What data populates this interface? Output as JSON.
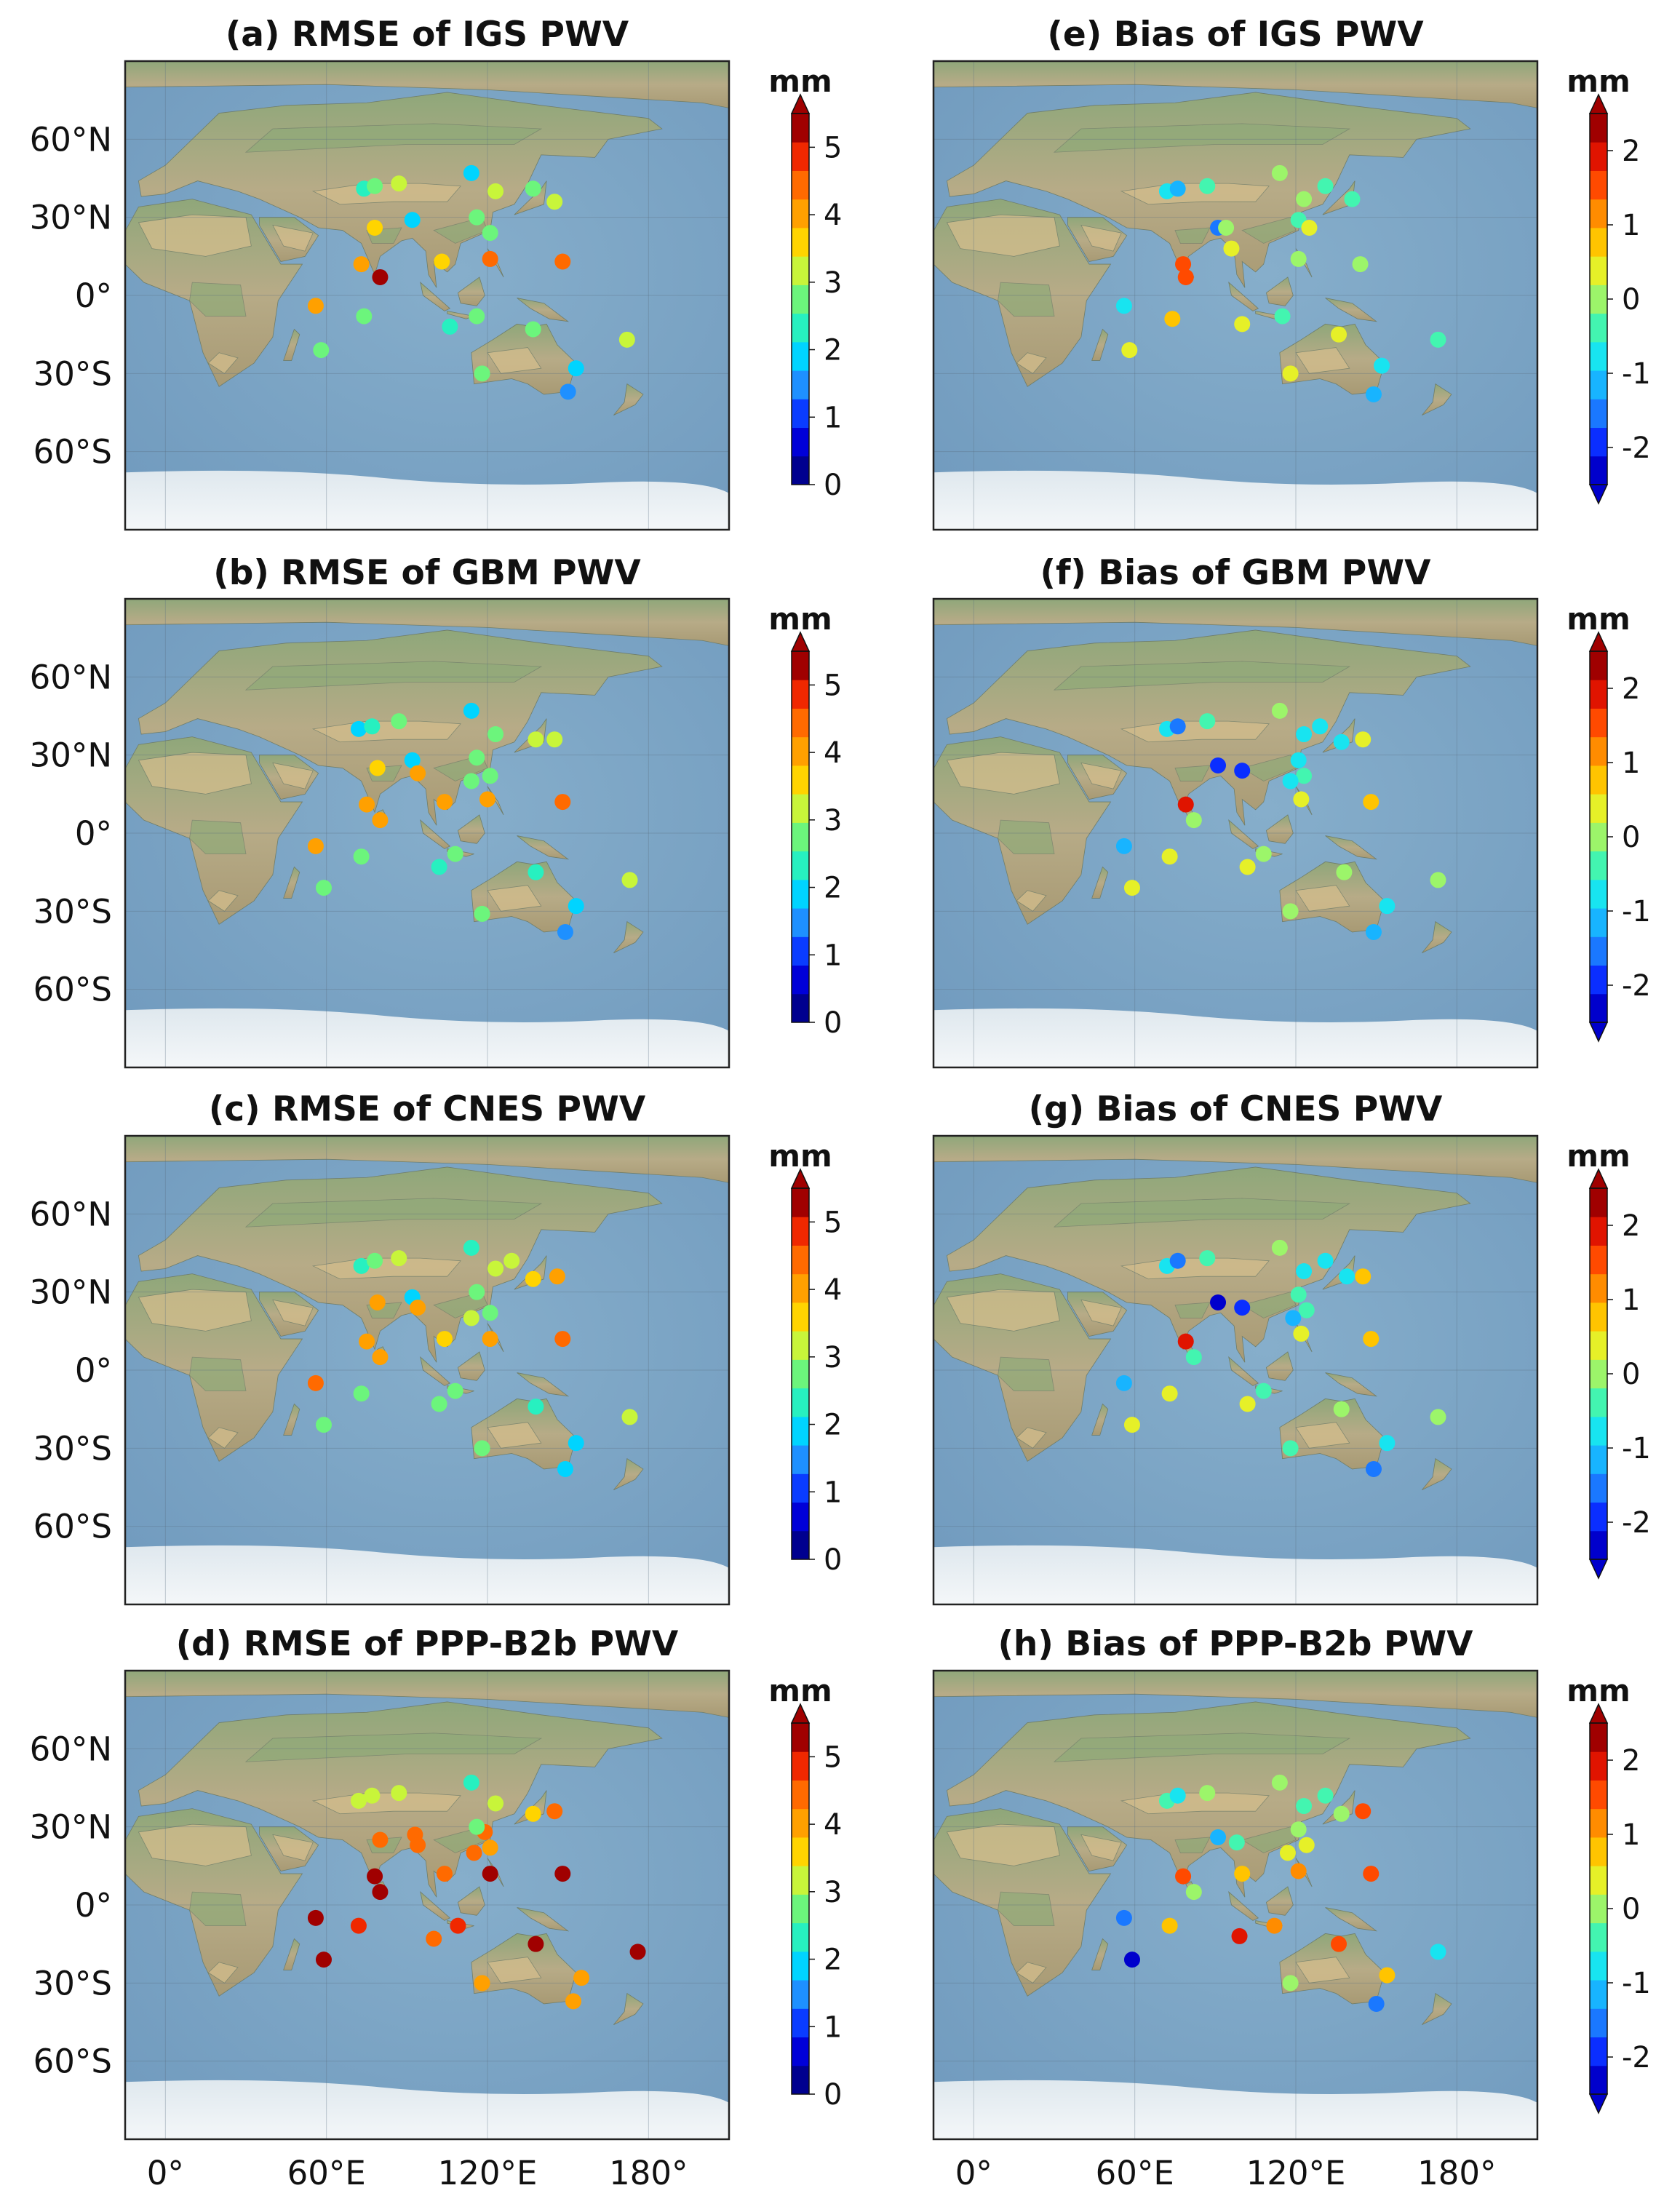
{
  "figure": {
    "colors": {
      "ocean": "#7fa9c9",
      "ocean_deep": "#6d97bb",
      "land_low": "#b9ad88",
      "land_green": "#8faa78",
      "desert": "#d3bd8c",
      "ice": "#eef2f5",
      "frame": "#222222"
    },
    "lat_labels": [
      {
        "text": "60°N",
        "lat": 60
      },
      {
        "text": "30°N",
        "lat": 30
      },
      {
        "text": "0°",
        "lat": 0
      },
      {
        "text": "30°S",
        "lat": -30
      },
      {
        "text": "60°S",
        "lat": -60
      }
    ],
    "lon_labels": [
      {
        "text": "0°",
        "lon": 0
      },
      {
        "text": "60°E",
        "lon": 60
      },
      {
        "text": "120°E",
        "lon": 120
      },
      {
        "text": "180°",
        "lon": 180
      }
    ]
  },
  "colorbars": {
    "rmse": {
      "unit": "mm",
      "ticks": [
        "0",
        "1",
        "2",
        "3",
        "4",
        "5"
      ],
      "tick_values": [
        0,
        1,
        2,
        3,
        4,
        5
      ],
      "range": [
        0,
        5.5
      ],
      "extend": "max",
      "colors": [
        "#00008f",
        "#0000d8",
        "#0a3cff",
        "#1e90ff",
        "#00d4ff",
        "#27f0c0",
        "#6cf57c",
        "#c8f53a",
        "#ffd400",
        "#ffa000",
        "#ff6a00",
        "#f02800",
        "#a00000"
      ]
    },
    "bias": {
      "unit": "mm",
      "ticks": [
        "-2",
        "-1",
        "0",
        "1",
        "2"
      ],
      "tick_values": [
        -2,
        -1,
        0,
        1,
        2
      ],
      "range": [
        -2.5,
        2.5
      ],
      "extend": "both",
      "colors": [
        "#0000cc",
        "#0a2eff",
        "#1a78ff",
        "#18b4ff",
        "#18e4f0",
        "#43f5b0",
        "#9cf56a",
        "#e6f028",
        "#ffc400",
        "#ff8c00",
        "#ff4a00",
        "#e01400",
        "#a00000"
      ]
    }
  },
  "chart_data": [
    {
      "type": "scatter",
      "map": "station map",
      "title": "(a) RMSE of IGS PWV",
      "colorbar": "rmse",
      "x_unit": "longitude (°E)",
      "y_unit": "latitude (°)",
      "points": [
        [
          74,
          41,
          2.3
        ],
        [
          78,
          42,
          2.7
        ],
        [
          87,
          43,
          3.2
        ],
        [
          114,
          47,
          2.0
        ],
        [
          123,
          40,
          3.3
        ],
        [
          137,
          41,
          2.8
        ],
        [
          92,
          29,
          2.1
        ],
        [
          78,
          26,
          3.7
        ],
        [
          116,
          30,
          2.6
        ],
        [
          145,
          36,
          3.3
        ],
        [
          121,
          24,
          2.6
        ],
        [
          73,
          12,
          3.9
        ],
        [
          80,
          7,
          5.4
        ],
        [
          103,
          13,
          3.8
        ],
        [
          121,
          14,
          4.3
        ],
        [
          148,
          13,
          4.4
        ],
        [
          56,
          -4,
          4.0
        ],
        [
          74,
          -8,
          2.9
        ],
        [
          106,
          -12,
          2.4
        ],
        [
          116,
          -8,
          2.8
        ],
        [
          137,
          -13,
          2.6
        ],
        [
          172,
          -17,
          3.1
        ],
        [
          58,
          -21,
          2.8
        ],
        [
          118,
          -30,
          2.9
        ],
        [
          153,
          -28,
          1.8
        ],
        [
          150,
          -37,
          1.6
        ]
      ]
    },
    {
      "type": "scatter",
      "map": "station map",
      "title": "(b) RMSE of GBM PWV",
      "colorbar": "rmse",
      "x_unit": "longitude (°E)",
      "y_unit": "latitude (°)",
      "points": [
        [
          72,
          40,
          2.1
        ],
        [
          77,
          41,
          2.3
        ],
        [
          87,
          43,
          2.6
        ],
        [
          114,
          47,
          2.1
        ],
        [
          123,
          38,
          2.9
        ],
        [
          138,
          36,
          3.1
        ],
        [
          145,
          36,
          3.1
        ],
        [
          92,
          28,
          1.9
        ],
        [
          79,
          25,
          3.8
        ],
        [
          94,
          23,
          4.1
        ],
        [
          116,
          29,
          2.6
        ],
        [
          121,
          22,
          2.7
        ],
        [
          114,
          20,
          2.8
        ],
        [
          104,
          12,
          3.9
        ],
        [
          120,
          13,
          4.1
        ],
        [
          75,
          11,
          4.2
        ],
        [
          80,
          5,
          4.1
        ],
        [
          148,
          12,
          4.3
        ],
        [
          56,
          -5,
          4.0
        ],
        [
          73,
          -9,
          2.9
        ],
        [
          108,
          -8,
          2.8
        ],
        [
          102,
          -13,
          2.5
        ],
        [
          138,
          -15,
          2.5
        ],
        [
          173,
          -18,
          3.1
        ],
        [
          59,
          -21,
          2.8
        ],
        [
          118,
          -31,
          2.9
        ],
        [
          153,
          -28,
          2.0
        ],
        [
          149,
          -38,
          1.6
        ]
      ]
    },
    {
      "type": "scatter",
      "map": "station map",
      "title": "(c) RMSE of CNES PWV",
      "colorbar": "rmse",
      "x_unit": "longitude (°E)",
      "y_unit": "latitude (°)",
      "points": [
        [
          73,
          40,
          2.3
        ],
        [
          78,
          42,
          2.7
        ],
        [
          87,
          43,
          3.1
        ],
        [
          114,
          47,
          2.2
        ],
        [
          123,
          39,
          3.2
        ],
        [
          129,
          42,
          3.3
        ],
        [
          137,
          35,
          3.5
        ],
        [
          146,
          36,
          4.1
        ],
        [
          92,
          28,
          2.0
        ],
        [
          79,
          26,
          4.0
        ],
        [
          94,
          24,
          4.2
        ],
        [
          116,
          30,
          2.8
        ],
        [
          121,
          22,
          2.7
        ],
        [
          114,
          20,
          3.0
        ],
        [
          104,
          12,
          3.8
        ],
        [
          121,
          12,
          4.2
        ],
        [
          75,
          11,
          4.0
        ],
        [
          80,
          5,
          4.1
        ],
        [
          148,
          12,
          4.5
        ],
        [
          56,
          -5,
          4.3
        ],
        [
          73,
          -9,
          2.9
        ],
        [
          108,
          -8,
          2.9
        ],
        [
          102,
          -13,
          2.6
        ],
        [
          138,
          -14,
          2.5
        ],
        [
          173,
          -18,
          3.1
        ],
        [
          59,
          -21,
          2.8
        ],
        [
          118,
          -30,
          2.8
        ],
        [
          153,
          -28,
          2.0
        ],
        [
          149,
          -38,
          1.7
        ]
      ]
    },
    {
      "type": "scatter",
      "map": "station map",
      "title": "(d) RMSE of PPP-B2b PWV",
      "colorbar": "rmse",
      "x_unit": "longitude (°E)",
      "y_unit": "latitude (°)",
      "points": [
        [
          72,
          40,
          3.0
        ],
        [
          77,
          42,
          3.0
        ],
        [
          87,
          43,
          3.2
        ],
        [
          114,
          47,
          2.2
        ],
        [
          123,
          39,
          3.3
        ],
        [
          137,
          35,
          3.6
        ],
        [
          145,
          36,
          4.6
        ],
        [
          80,
          25,
          4.6
        ],
        [
          93,
          27,
          4.5
        ],
        [
          94,
          23,
          4.3
        ],
        [
          119,
          28,
          4.6
        ],
        [
          116,
          30,
          2.6
        ],
        [
          121,
          22,
          4.0
        ],
        [
          115,
          20,
          4.4
        ],
        [
          104,
          12,
          4.6
        ],
        [
          121,
          12,
          5.2
        ],
        [
          148,
          12,
          5.8
        ],
        [
          78,
          11,
          5.8
        ],
        [
          80,
          5,
          5.8
        ],
        [
          56,
          -5,
          5.3
        ],
        [
          72,
          -8,
          4.7
        ],
        [
          109,
          -8,
          4.7
        ],
        [
          100,
          -13,
          4.6
        ],
        [
          138,
          -15,
          5.3
        ],
        [
          176,
          -18,
          5.8
        ],
        [
          59,
          -21,
          5.3
        ],
        [
          118,
          -30,
          4.0
        ],
        [
          155,
          -28,
          4.2
        ],
        [
          152,
          -37,
          4.1
        ]
      ]
    },
    {
      "type": "scatter",
      "map": "station map",
      "title": "(e) Bias of IGS PWV",
      "colorbar": "bias",
      "x_unit": "longitude (°E)",
      "y_unit": "latitude (°)",
      "points": [
        [
          72,
          40,
          -0.8
        ],
        [
          76,
          41,
          -1.0
        ],
        [
          87,
          42,
          -0.3
        ],
        [
          114,
          47,
          0.0
        ],
        [
          123,
          37,
          -0.1
        ],
        [
          131,
          42,
          -0.5
        ],
        [
          141,
          37,
          -0.2
        ],
        [
          91,
          26,
          -1.7
        ],
        [
          78,
          12,
          1.6
        ],
        [
          79,
          7,
          1.7
        ],
        [
          94,
          26,
          0.1
        ],
        [
          121,
          29,
          -0.2
        ],
        [
          125,
          26,
          0.5
        ],
        [
          96,
          18,
          0.3
        ],
        [
          121,
          14,
          0.0
        ],
        [
          144,
          12,
          0.1
        ],
        [
          56,
          -4,
          -0.9
        ],
        [
          74,
          -9,
          0.7
        ],
        [
          100,
          -11,
          0.2
        ],
        [
          115,
          -8,
          -0.4
        ],
        [
          136,
          -15,
          0.2
        ],
        [
          173,
          -17,
          -0.2
        ],
        [
          58,
          -21,
          0.2
        ],
        [
          118,
          -30,
          0.2
        ],
        [
          152,
          -27,
          -0.6
        ],
        [
          149,
          -38,
          -1.3
        ]
      ]
    },
    {
      "type": "scatter",
      "map": "station map",
      "title": "(f) Bias of GBM PWV",
      "colorbar": "bias",
      "x_unit": "longitude (°E)",
      "y_unit": "latitude (°)",
      "points": [
        [
          72,
          40,
          -0.8
        ],
        [
          76,
          41,
          -1.4
        ],
        [
          87,
          43,
          -0.3
        ],
        [
          114,
          47,
          -0.1
        ],
        [
          123,
          38,
          -0.7
        ],
        [
          129,
          41,
          -0.6
        ],
        [
          137,
          35,
          -0.6
        ],
        [
          145,
          36,
          0.5
        ],
        [
          91,
          26,
          -1.9
        ],
        [
          100,
          24,
          -1.8
        ],
        [
          121,
          28,
          -0.6
        ],
        [
          123,
          22,
          -0.4
        ],
        [
          118,
          20,
          -0.8
        ],
        [
          122,
          13,
          0.3
        ],
        [
          79,
          11,
          1.8
        ],
        [
          82,
          5,
          0.0
        ],
        [
          148,
          12,
          0.8
        ],
        [
          56,
          -5,
          -1.2
        ],
        [
          73,
          -9,
          0.3
        ],
        [
          108,
          -8,
          -0.1
        ],
        [
          102,
          -13,
          0.4
        ],
        [
          138,
          -15,
          0.0
        ],
        [
          173,
          -18,
          -0.1
        ],
        [
          59,
          -21,
          0.2
        ],
        [
          118,
          -30,
          0.0
        ],
        [
          154,
          -28,
          -0.6
        ],
        [
          149,
          -38,
          -1.3
        ]
      ]
    },
    {
      "type": "scatter",
      "map": "station map",
      "title": "(g) Bias of CNES PWV",
      "colorbar": "bias",
      "x_unit": "longitude (°E)",
      "y_unit": "latitude (°)",
      "points": [
        [
          72,
          40,
          -0.8
        ],
        [
          76,
          42,
          -1.5
        ],
        [
          87,
          43,
          -0.3
        ],
        [
          114,
          47,
          -0.1
        ],
        [
          123,
          38,
          -0.7
        ],
        [
          131,
          42,
          -0.6
        ],
        [
          139,
          36,
          -0.7
        ],
        [
          145,
          36,
          0.6
        ],
        [
          91,
          26,
          -2.4
        ],
        [
          100,
          24,
          -2.0
        ],
        [
          121,
          29,
          -0.4
        ],
        [
          124,
          23,
          -0.4
        ],
        [
          119,
          20,
          -1.3
        ],
        [
          122,
          14,
          0.2
        ],
        [
          79,
          11,
          2.0
        ],
        [
          82,
          5,
          -0.3
        ],
        [
          148,
          12,
          0.8
        ],
        [
          56,
          -5,
          -1.2
        ],
        [
          73,
          -9,
          0.2
        ],
        [
          108,
          -8,
          -0.3
        ],
        [
          102,
          -13,
          0.2
        ],
        [
          137,
          -15,
          0.0
        ],
        [
          173,
          -18,
          -0.1
        ],
        [
          59,
          -21,
          0.4
        ],
        [
          118,
          -30,
          -0.2
        ],
        [
          154,
          -28,
          -0.7
        ],
        [
          149,
          -38,
          -1.5
        ]
      ]
    },
    {
      "type": "scatter",
      "map": "station map",
      "title": "(h) Bias of PPP-B2b PWV",
      "colorbar": "bias",
      "x_unit": "longitude (°E)",
      "y_unit": "latitude (°)",
      "points": [
        [
          72,
          40,
          -0.4
        ],
        [
          76,
          42,
          -0.9
        ],
        [
          87,
          43,
          0.0
        ],
        [
          114,
          47,
          0.1
        ],
        [
          123,
          38,
          -0.5
        ],
        [
          131,
          42,
          -0.4
        ],
        [
          137,
          35,
          -0.1
        ],
        [
          145,
          36,
          1.5
        ],
        [
          91,
          26,
          -1.3
        ],
        [
          98,
          24,
          -0.5
        ],
        [
          121,
          29,
          0.0
        ],
        [
          124,
          23,
          0.3
        ],
        [
          117,
          20,
          0.5
        ],
        [
          100,
          12,
          0.8
        ],
        [
          121,
          13,
          1.1
        ],
        [
          148,
          12,
          1.5
        ],
        [
          78,
          11,
          1.6
        ],
        [
          82,
          5,
          0.1
        ],
        [
          56,
          -5,
          -1.5
        ],
        [
          73,
          -8,
          0.9
        ],
        [
          99,
          -12,
          2.1
        ],
        [
          112,
          -8,
          1.0
        ],
        [
          136,
          -15,
          1.6
        ],
        [
          173,
          -18,
          -0.9
        ],
        [
          59,
          -21,
          -2.3
        ],
        [
          118,
          -30,
          0.1
        ],
        [
          154,
          -27,
          0.6
        ],
        [
          150,
          -38,
          -1.4
        ]
      ]
    }
  ]
}
